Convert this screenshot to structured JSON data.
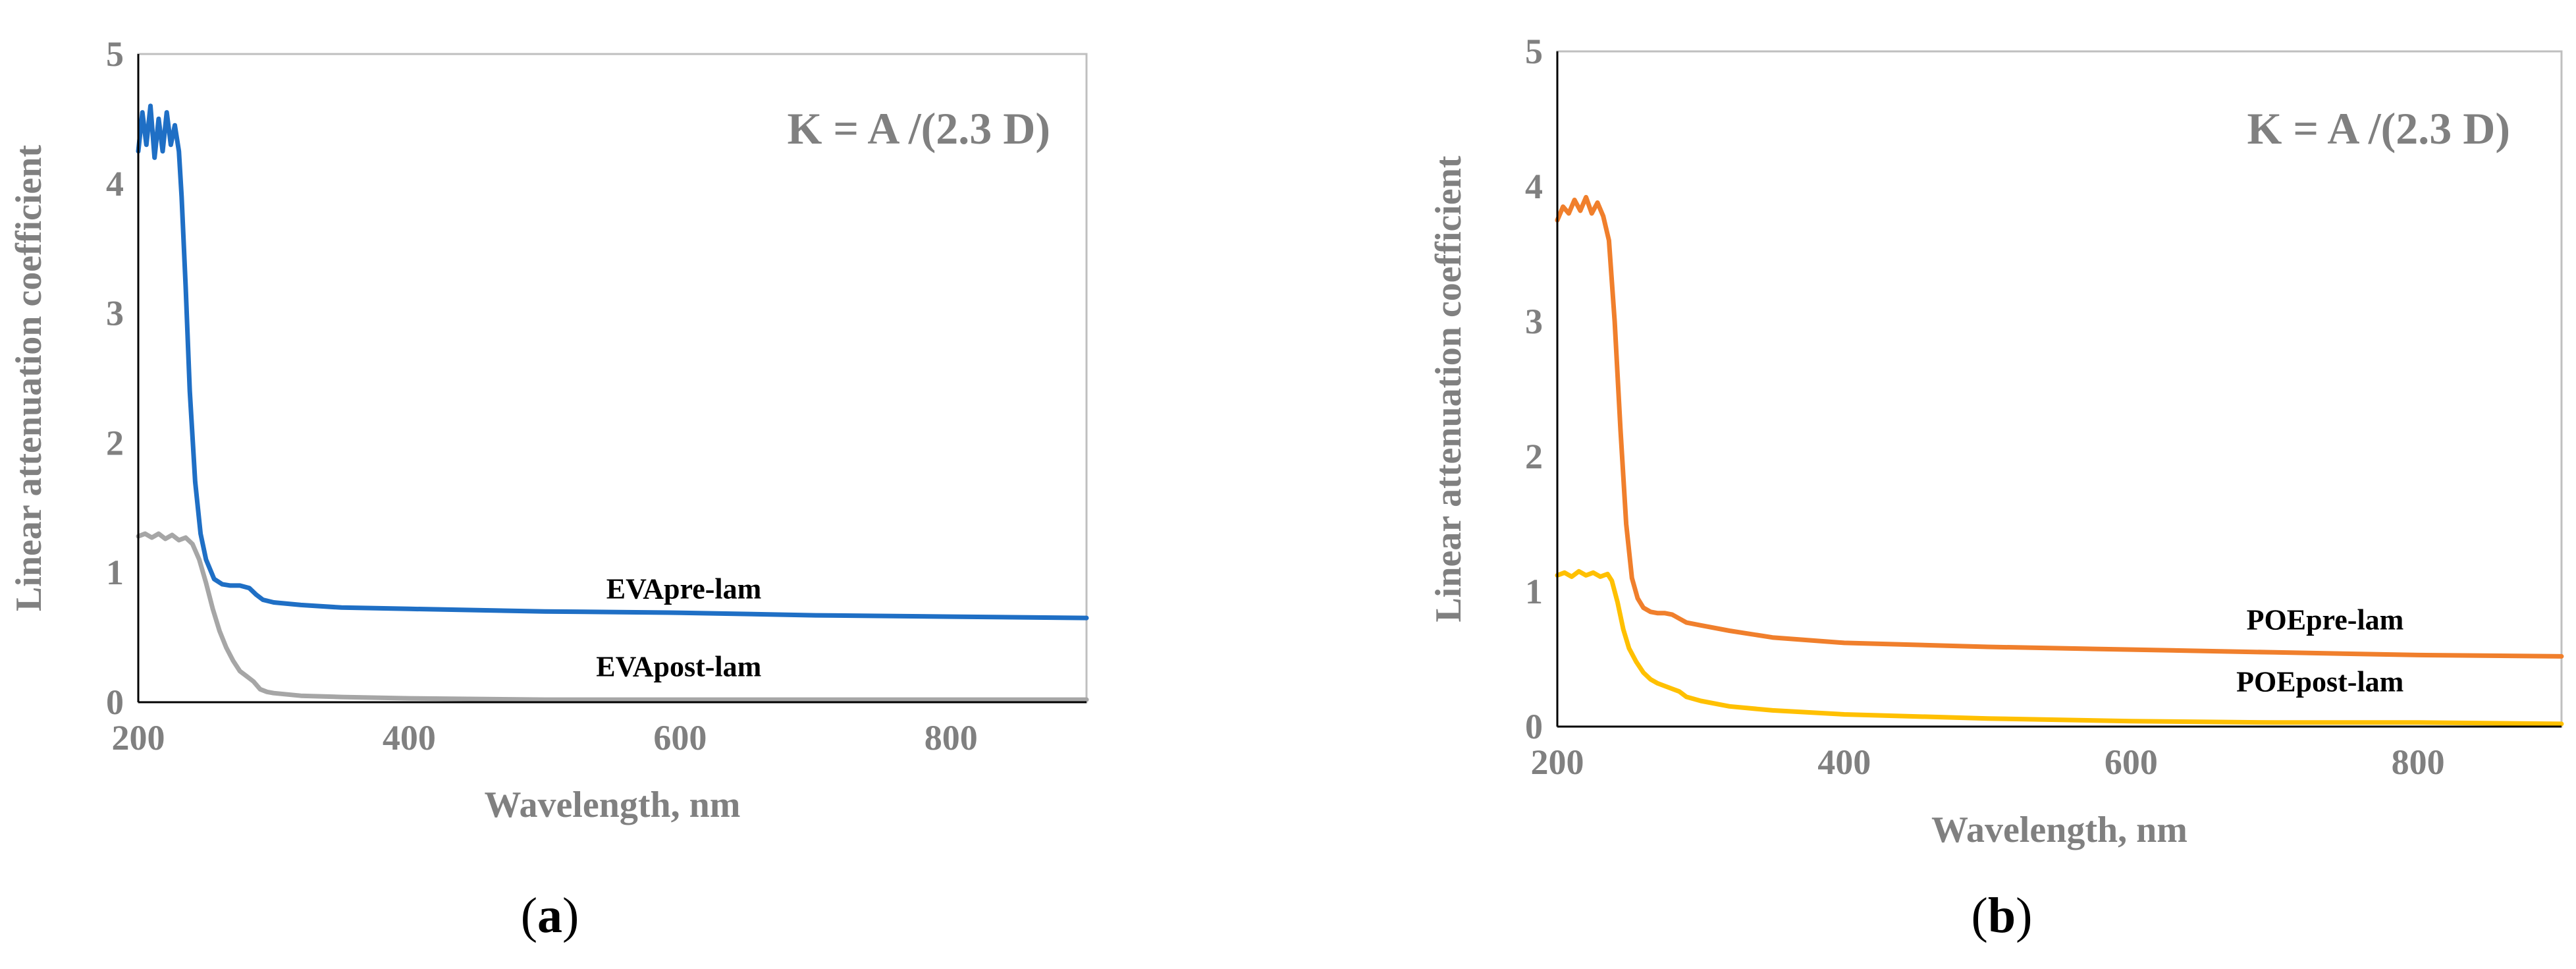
{
  "colors": {
    "axis": "#808080",
    "eva_pre": "#1f6fc5",
    "eva_post": "#a6a6a6",
    "poe_pre": "#f07f2c",
    "poe_post": "#ffc000"
  },
  "chart_data": [
    {
      "id": "a",
      "type": "line",
      "caption": {
        "open": "(",
        "letter": "a",
        "close": ")"
      },
      "formula": "K = A /(2.3 D)",
      "xlabel": "Wavelength, nm",
      "ylabel": "Linear attenuation coefficient",
      "xlim": [
        200,
        900
      ],
      "ylim": [
        0,
        5
      ],
      "xticks": [
        "200",
        "400",
        "600",
        "800"
      ],
      "xtick_values": [
        200,
        400,
        600,
        800
      ],
      "yticks": [
        "0",
        "1",
        "2",
        "3",
        "4",
        "5"
      ],
      "ytick_values": [
        0,
        1,
        2,
        3,
        4,
        5
      ],
      "series": [
        {
          "name": "EVApre-lam",
          "color_key": "eva_pre",
          "label_anchor": [
            660,
            0.8
          ],
          "x": [
            200,
            203,
            206,
            209,
            212,
            215,
            218,
            221,
            224,
            227,
            230,
            232,
            235,
            238,
            242,
            246,
            250,
            256,
            262,
            268,
            275,
            282,
            287,
            292,
            300,
            320,
            350,
            400,
            500,
            600,
            700,
            800,
            900
          ],
          "y": [
            4.25,
            4.55,
            4.3,
            4.6,
            4.2,
            4.5,
            4.25,
            4.55,
            4.3,
            4.45,
            4.25,
            3.9,
            3.2,
            2.4,
            1.7,
            1.3,
            1.1,
            0.95,
            0.91,
            0.9,
            0.9,
            0.88,
            0.83,
            0.79,
            0.77,
            0.75,
            0.73,
            0.72,
            0.7,
            0.69,
            0.67,
            0.66,
            0.65
          ]
        },
        {
          "name": "EVApost-lam",
          "color_key": "eva_post",
          "label_anchor": [
            660,
            0.2
          ],
          "x": [
            200,
            205,
            210,
            215,
            220,
            225,
            230,
            235,
            240,
            245,
            250,
            255,
            260,
            265,
            270,
            275,
            280,
            285,
            290,
            295,
            300,
            320,
            350,
            400,
            500,
            600,
            700,
            800,
            900
          ],
          "y": [
            1.28,
            1.3,
            1.27,
            1.3,
            1.26,
            1.29,
            1.25,
            1.27,
            1.22,
            1.1,
            0.92,
            0.72,
            0.55,
            0.42,
            0.32,
            0.24,
            0.2,
            0.16,
            0.1,
            0.08,
            0.07,
            0.05,
            0.04,
            0.03,
            0.02,
            0.02,
            0.02,
            0.02,
            0.02
          ]
        }
      ]
    },
    {
      "id": "b",
      "type": "line",
      "caption": {
        "open": "(",
        "letter": "b",
        "close": ")"
      },
      "formula": "K = A /(2.3 D)",
      "xlabel": "Wavelength, nm",
      "ylabel": "Linear attenuation coefficient",
      "xlim": [
        200,
        900
      ],
      "ylim": [
        0,
        5
      ],
      "xticks": [
        "200",
        "400",
        "600",
        "800"
      ],
      "xtick_values": [
        200,
        400,
        600,
        800
      ],
      "yticks": [
        "0",
        "1",
        "2",
        "3",
        "4",
        "5"
      ],
      "ytick_values": [
        0,
        1,
        2,
        3,
        4,
        5
      ],
      "series": [
        {
          "name": "POEpre-lam",
          "color_key": "poe_pre",
          "label_anchor": [
            790,
            0.72
          ],
          "x": [
            200,
            204,
            208,
            212,
            216,
            220,
            224,
            228,
            232,
            236,
            240,
            244,
            248,
            252,
            256,
            260,
            265,
            270,
            275,
            280,
            285,
            290,
            300,
            320,
            350,
            400,
            500,
            600,
            700,
            800,
            900
          ],
          "y": [
            3.75,
            3.85,
            3.8,
            3.9,
            3.82,
            3.92,
            3.8,
            3.88,
            3.78,
            3.6,
            3.0,
            2.2,
            1.5,
            1.1,
            0.95,
            0.88,
            0.85,
            0.84,
            0.84,
            0.83,
            0.8,
            0.77,
            0.75,
            0.71,
            0.66,
            0.62,
            0.59,
            0.57,
            0.55,
            0.53,
            0.52
          ]
        },
        {
          "name": "POEpost-lam",
          "color_key": "poe_post",
          "label_anchor": [
            790,
            0.26
          ],
          "x": [
            200,
            205,
            210,
            215,
            220,
            225,
            230,
            235,
            238,
            242,
            246,
            250,
            255,
            260,
            265,
            270,
            275,
            280,
            285,
            290,
            300,
            320,
            350,
            400,
            500,
            600,
            700,
            800,
            900
          ],
          "y": [
            1.12,
            1.14,
            1.11,
            1.15,
            1.12,
            1.14,
            1.11,
            1.13,
            1.08,
            0.92,
            0.72,
            0.58,
            0.48,
            0.4,
            0.35,
            0.32,
            0.3,
            0.28,
            0.26,
            0.22,
            0.19,
            0.15,
            0.12,
            0.09,
            0.06,
            0.04,
            0.03,
            0.03,
            0.02
          ]
        }
      ]
    }
  ]
}
